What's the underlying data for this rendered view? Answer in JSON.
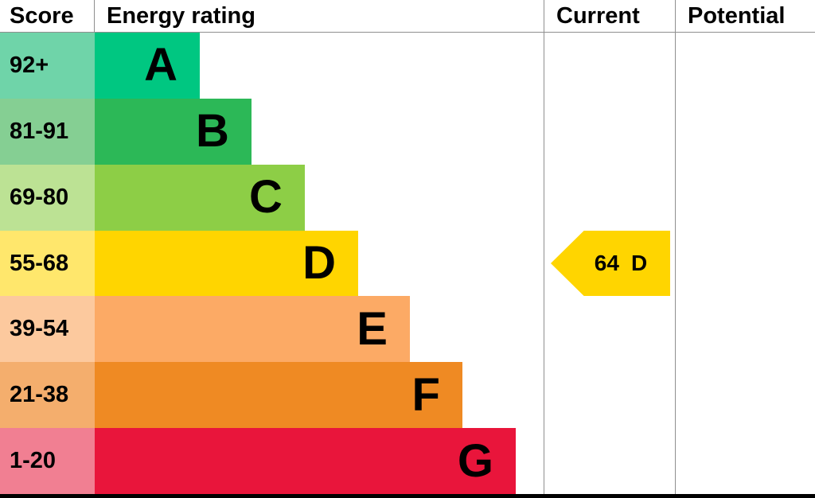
{
  "header": {
    "score": "Score",
    "energy_rating": "Energy rating",
    "current": "Current",
    "potential": "Potential"
  },
  "chart_data": {
    "type": "bar",
    "title": "Energy rating",
    "categories": [
      "A",
      "B",
      "C",
      "D",
      "E",
      "F",
      "G"
    ],
    "score_ranges": [
      "92+",
      "81-91",
      "69-80",
      "55-68",
      "39-54",
      "21-38",
      "1-20"
    ],
    "bands": [
      {
        "letter": "A",
        "range": "92+",
        "bar_color": "#00c781",
        "score_color": "#6fd4a9",
        "width_pct": 23.4
      },
      {
        "letter": "B",
        "range": "81-91",
        "bar_color": "#2cb857",
        "score_color": "#85cf93",
        "width_pct": 34.9
      },
      {
        "letter": "C",
        "range": "69-80",
        "bar_color": "#8dce46",
        "score_color": "#bce294",
        "width_pct": 46.8
      },
      {
        "letter": "D",
        "range": "55-68",
        "bar_color": "#ffd500",
        "score_color": "#ffe76c",
        "width_pct": 58.7
      },
      {
        "letter": "E",
        "range": "39-54",
        "bar_color": "#fcaa65",
        "score_color": "#fcc99e",
        "width_pct": 70.2
      },
      {
        "letter": "F",
        "range": "21-38",
        "bar_color": "#ef8a23",
        "score_color": "#f4ae6d",
        "width_pct": 81.9
      },
      {
        "letter": "G",
        "range": "1-20",
        "bar_color": "#e9153b",
        "score_color": "#f17f92",
        "width_pct": 93.8
      }
    ],
    "current": {
      "value": "64",
      "band": "D",
      "color": "#ffd500",
      "band_index": 3
    }
  }
}
